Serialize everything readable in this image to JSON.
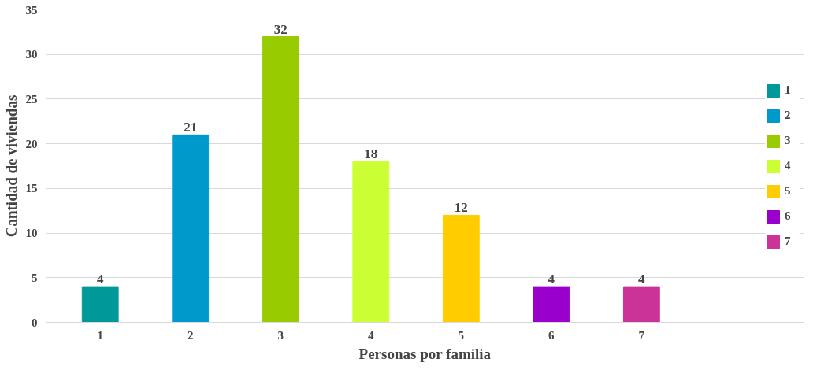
{
  "chart_data": {
    "type": "bar",
    "xlabel": "Personas por familia",
    "ylabel": "Cantidad de viviendas",
    "categories": [
      "1",
      "2",
      "3",
      "4",
      "5",
      "6",
      "7"
    ],
    "series": [
      {
        "name": "1",
        "color": "#009999",
        "values": [
          4,
          null,
          null,
          null,
          null,
          null,
          null
        ]
      },
      {
        "name": "2",
        "color": "#0099cc",
        "values": [
          null,
          21,
          null,
          null,
          null,
          null,
          null
        ]
      },
      {
        "name": "3",
        "color": "#99cc00",
        "values": [
          null,
          null,
          32,
          null,
          null,
          null,
          null
        ]
      },
      {
        "name": "4",
        "color": "#ccff33",
        "values": [
          null,
          null,
          null,
          18,
          null,
          null,
          null
        ]
      },
      {
        "name": "5",
        "color": "#ffcc00",
        "values": [
          null,
          null,
          null,
          null,
          12,
          null,
          null
        ]
      },
      {
        "name": "6",
        "color": "#9900cc",
        "values": [
          null,
          null,
          null,
          null,
          null,
          4,
          null
        ]
      },
      {
        "name": "7",
        "color": "#cc3399",
        "values": [
          null,
          null,
          null,
          null,
          null,
          null,
          4
        ]
      }
    ],
    "ylim": [
      0,
      35
    ],
    "yticks": [
      0,
      5,
      10,
      15,
      20,
      25,
      30,
      35
    ],
    "grid": "y",
    "legend": "right",
    "data_labels": true
  }
}
